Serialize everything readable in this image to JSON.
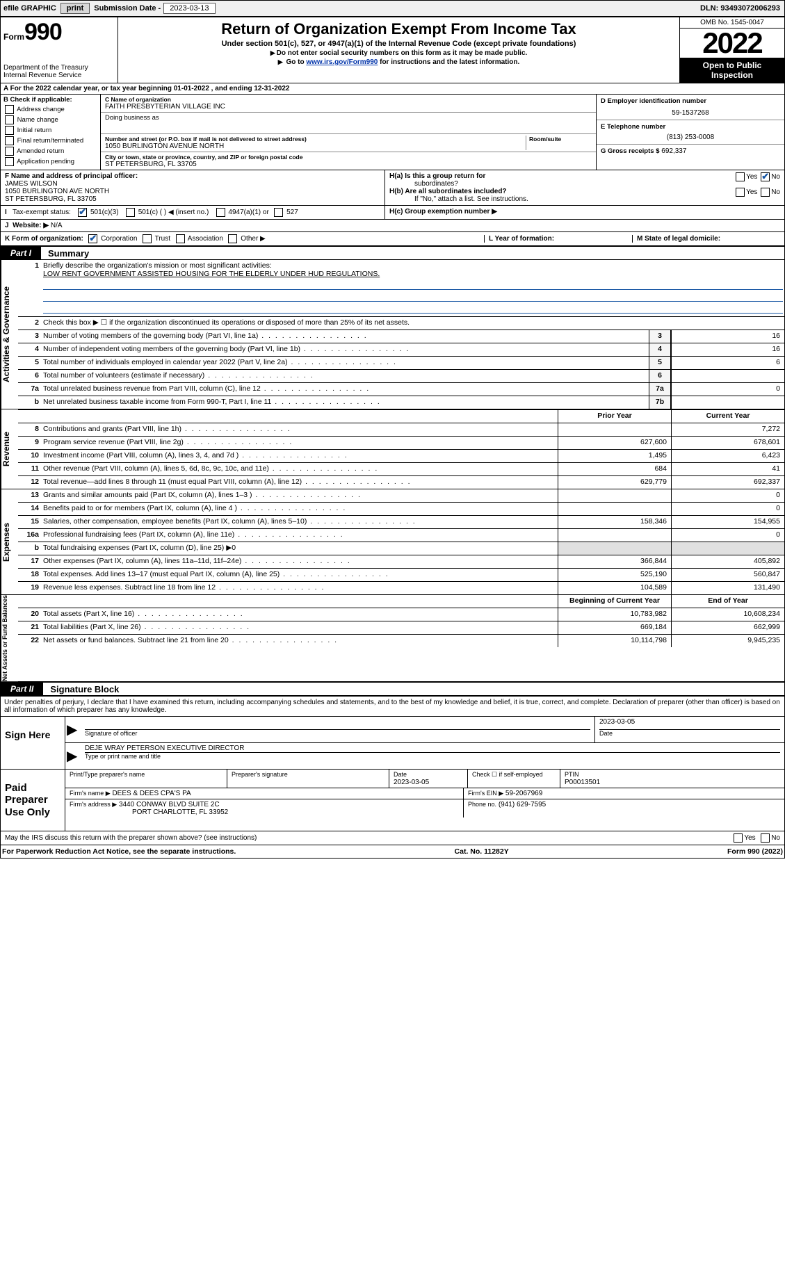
{
  "topbar": {
    "efile": "efile GRAPHIC",
    "print": "print",
    "submission_label": "Submission Date -",
    "submission_date": "2023-03-13",
    "dln_label": "DLN:",
    "dln": "93493072006293"
  },
  "header": {
    "form_prefix": "Form",
    "form_number": "990",
    "dept": "Department of the Treasury",
    "irs": "Internal Revenue Service",
    "title": "Return of Organization Exempt From Income Tax",
    "sub1": "Under section 501(c), 527, or 4947(a)(1) of the Internal Revenue Code (except private foundations)",
    "sub2": "Do not enter social security numbers on this form as it may be made public.",
    "sub3_pre": "Go to ",
    "sub3_link": "www.irs.gov/Form990",
    "sub3_post": " for instructions and the latest information.",
    "omb": "OMB No. 1545-0047",
    "year": "2022",
    "open_public1": "Open to Public",
    "open_public2": "Inspection"
  },
  "row_a": {
    "text_pre": "For the 2022 calendar year, or tax year beginning ",
    "begin": "01-01-2022",
    "mid": " , and ending ",
    "end": "12-31-2022"
  },
  "col_b": {
    "header": "B Check if applicable:",
    "items": [
      "Address change",
      "Name change",
      "Initial return",
      "Final return/terminated",
      "Amended return",
      "Application pending"
    ]
  },
  "col_c": {
    "name_label": "C Name of organization",
    "name": "FAITH PRESBYTERIAN VILLAGE INC",
    "dba_label": "Doing business as",
    "dba": "",
    "street_label": "Number and street (or P.O. box if mail is not delivered to street address)",
    "room_label": "Room/suite",
    "street": "1050 BURLINGTON AVENUE NORTH",
    "city_label": "City or town, state or province, country, and ZIP or foreign postal code",
    "city": "ST PETERSBURG, FL  33705"
  },
  "col_d": {
    "label": "D Employer identification number",
    "ein": "59-1537268"
  },
  "col_e": {
    "label": "E Telephone number",
    "phone": "(813) 253-0008"
  },
  "col_g": {
    "label": "G Gross receipts $",
    "amount": "692,337"
  },
  "col_f": {
    "label": "F Name and address of principal officer:",
    "name": "JAMES WILSON",
    "street": "1050 BURLINGTON AVE NORTH",
    "city": "ST PETERSBURG, FL  33705"
  },
  "col_h": {
    "ha_label": "H(a)  Is this a group return for",
    "ha_label2": "subordinates?",
    "hb_label": "H(b)  Are all subordinates included?",
    "hb_note": "If \"No,\" attach a list. See instructions.",
    "hc_label": "H(c)  Group exemption number ▶",
    "yes": "Yes",
    "no": "No"
  },
  "line_i": {
    "label": "I",
    "text": "Tax-exempt status:",
    "opt1": "501(c)(3)",
    "opt2": "501(c) (  ) ◀ (insert no.)",
    "opt3": "4947(a)(1) or",
    "opt4": "527"
  },
  "line_j": {
    "label": "J",
    "text": "Website: ▶",
    "value": "N/A"
  },
  "line_k": {
    "label": "K Form of organization:",
    "opt1": "Corporation",
    "opt2": "Trust",
    "opt3": "Association",
    "opt4": "Other ▶"
  },
  "line_l": {
    "label": "L Year of formation:",
    "value": ""
  },
  "line_m": {
    "label": "M State of legal domicile:",
    "value": ""
  },
  "part1": {
    "tag": "Part I",
    "title": "Summary",
    "side_gov": "Activities & Governance",
    "side_rev": "Revenue",
    "side_exp": "Expenses",
    "side_net": "Net Assets or Fund Balances",
    "q1": "Briefly describe the organization's mission or most significant activities:",
    "mission": "LOW RENT GOVERNMENT ASSISTED HOUSING FOR THE ELDERLY UNDER HUD REGULATIONS.",
    "q2": "Check this box ▶ ☐  if the organization discontinued its operations or disposed of more than 25% of its net assets.",
    "rows_gov": [
      {
        "n": "3",
        "d": "Number of voting members of the governing body (Part VI, line 1a)",
        "b": "3",
        "v": "16"
      },
      {
        "n": "4",
        "d": "Number of independent voting members of the governing body (Part VI, line 1b)",
        "b": "4",
        "v": "16"
      },
      {
        "n": "5",
        "d": "Total number of individuals employed in calendar year 2022 (Part V, line 2a)",
        "b": "5",
        "v": "6"
      },
      {
        "n": "6",
        "d": "Total number of volunteers (estimate if necessary)",
        "b": "6",
        "v": ""
      },
      {
        "n": "7a",
        "d": "Total unrelated business revenue from Part VIII, column (C), line 12",
        "b": "7a",
        "v": "0"
      },
      {
        "n": "b",
        "d": "Net unrelated business taxable income from Form 990-T, Part I, line 11",
        "b": "7b",
        "v": ""
      }
    ],
    "col_prior": "Prior Year",
    "col_current": "Current Year",
    "rows_rev": [
      {
        "n": "8",
        "d": "Contributions and grants (Part VIII, line 1h)",
        "p": "",
        "c": "7,272"
      },
      {
        "n": "9",
        "d": "Program service revenue (Part VIII, line 2g)",
        "p": "627,600",
        "c": "678,601"
      },
      {
        "n": "10",
        "d": "Investment income (Part VIII, column (A), lines 3, 4, and 7d )",
        "p": "1,495",
        "c": "6,423"
      },
      {
        "n": "11",
        "d": "Other revenue (Part VIII, column (A), lines 5, 6d, 8c, 9c, 10c, and 11e)",
        "p": "684",
        "c": "41"
      },
      {
        "n": "12",
        "d": "Total revenue—add lines 8 through 11 (must equal Part VIII, column (A), line 12)",
        "p": "629,779",
        "c": "692,337"
      }
    ],
    "rows_exp": [
      {
        "n": "13",
        "d": "Grants and similar amounts paid (Part IX, column (A), lines 1–3 )",
        "p": "",
        "c": "0"
      },
      {
        "n": "14",
        "d": "Benefits paid to or for members (Part IX, column (A), line 4 )",
        "p": "",
        "c": "0"
      },
      {
        "n": "15",
        "d": "Salaries, other compensation, employee benefits (Part IX, column (A), lines 5–10)",
        "p": "158,346",
        "c": "154,955"
      },
      {
        "n": "16a",
        "d": "Professional fundraising fees (Part IX, column (A), line 11e)",
        "p": "",
        "c": "0"
      },
      {
        "n": "b",
        "d": "Total fundraising expenses (Part IX, column (D), line 25) ▶0",
        "p": "—",
        "c": "—"
      },
      {
        "n": "17",
        "d": "Other expenses (Part IX, column (A), lines 11a–11d, 11f–24e)",
        "p": "366,844",
        "c": "405,892"
      },
      {
        "n": "18",
        "d": "Total expenses. Add lines 13–17 (must equal Part IX, column (A), line 25)",
        "p": "525,190",
        "c": "560,847"
      },
      {
        "n": "19",
        "d": "Revenue less expenses. Subtract line 18 from line 12",
        "p": "104,589",
        "c": "131,490"
      }
    ],
    "col_begin": "Beginning of Current Year",
    "col_end": "End of Year",
    "rows_net": [
      {
        "n": "20",
        "d": "Total assets (Part X, line 16)",
        "p": "10,783,982",
        "c": "10,608,234"
      },
      {
        "n": "21",
        "d": "Total liabilities (Part X, line 26)",
        "p": "669,184",
        "c": "662,999"
      },
      {
        "n": "22",
        "d": "Net assets or fund balances. Subtract line 21 from line 20",
        "p": "10,114,798",
        "c": "9,945,235"
      }
    ]
  },
  "part2": {
    "tag": "Part II",
    "title": "Signature Block",
    "penalties": "Under penalties of perjury, I declare that I have examined this return, including accompanying schedules and statements, and to the best of my knowledge and belief, it is true, correct, and complete. Declaration of preparer (other than officer) is based on all information of which preparer has any knowledge.",
    "sign_here": "Sign Here",
    "sig_officer_label": "Signature of officer",
    "sig_date": "2023-03-05",
    "date_label": "Date",
    "officer_name": "DEJE WRAY PETERSON  EXECUTIVE DIRECTOR",
    "officer_label": "Type or print name and title",
    "paid": "Paid Preparer Use Only",
    "pp_name_label": "Print/Type preparer's name",
    "pp_sig_label": "Preparer's signature",
    "pp_date_label": "Date",
    "pp_date": "2023-03-05",
    "pp_check_label": "Check ☐ if self-employed",
    "ptin_label": "PTIN",
    "ptin": "P00013501",
    "firm_name_label": "Firm's name      ▶",
    "firm_name": "DEES & DEES CPA'S PA",
    "firm_ein_label": "Firm's EIN ▶",
    "firm_ein": "59-2067969",
    "firm_addr_label": "Firm's address ▶",
    "firm_addr1": "3440 CONWAY BLVD SUITE 2C",
    "firm_addr2": "PORT CHARLOTTE, FL  33952",
    "firm_phone_label": "Phone no.",
    "firm_phone": "(941) 629-7595",
    "may_irs": "May the IRS discuss this return with the preparer shown above? (see instructions)"
  },
  "footer": {
    "left": "For Paperwork Reduction Act Notice, see the separate instructions.",
    "mid": "Cat. No. 11282Y",
    "right": "Form 990 (2022)"
  }
}
